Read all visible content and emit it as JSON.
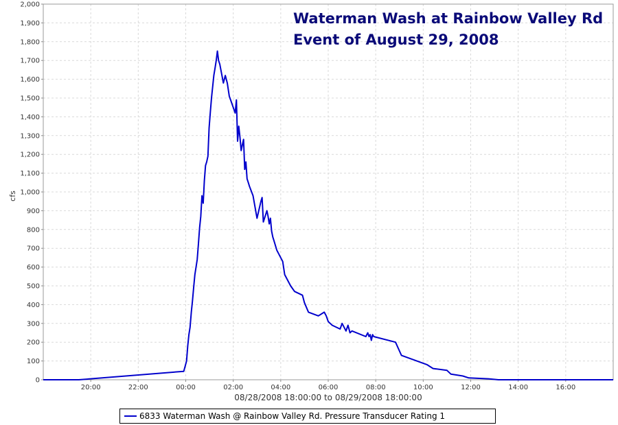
{
  "chart_data": {
    "type": "line",
    "title_lines": [
      "Waterman Wash at Rainbow Valley Rd",
      "Event of August 29, 2008"
    ],
    "xlabel": "08/28/2008 18:00:00 to 08/29/2008 18:00:00",
    "ylabel": "cfs",
    "ylim": [
      0,
      2000
    ],
    "xlim": [
      "08/28/2008 18:00",
      "08/29/2008 18:00"
    ],
    "y_ticks": [
      "0",
      "100",
      "200",
      "300",
      "400",
      "500",
      "600",
      "700",
      "800",
      "900",
      "1,000",
      "1,100",
      "1,200",
      "1,300",
      "1,400",
      "1,500",
      "1,600",
      "1,700",
      "1,800",
      "1,900",
      "2,000"
    ],
    "x_ticks": [
      "20:00",
      "22:00",
      "00:00",
      "02:00",
      "04:00",
      "06:00",
      "08:00",
      "10:00",
      "12:00",
      "14:00",
      "16:00"
    ],
    "grid": true,
    "legend_position": "bottom",
    "series": [
      {
        "name": "6833 Waterman Wash @ Rainbow Valley Rd. Pressure Transducer Rating 1",
        "color": "#0000cc",
        "x": [
          "08/28/2008 18:00",
          "08/28/2008 19:30",
          "08/28/2008 23:55",
          "08/29/2008 00:02",
          "08/29/2008 00:05",
          "08/29/2008 00:08",
          "08/29/2008 00:11",
          "08/29/2008 00:14",
          "08/29/2008 00:17",
          "08/29/2008 00:20",
          "08/29/2008 00:23",
          "08/29/2008 00:26",
          "08/29/2008 00:29",
          "08/29/2008 00:32",
          "08/29/2008 00:35",
          "08/29/2008 00:38",
          "08/29/2008 00:41",
          "08/29/2008 00:44",
          "08/29/2008 00:47",
          "08/29/2008 00:50",
          "08/29/2008 00:53",
          "08/29/2008 00:56",
          "08/29/2008 00:59",
          "08/29/2008 01:02",
          "08/29/2008 01:05",
          "08/29/2008 01:08",
          "08/29/2008 01:11",
          "08/29/2008 01:14",
          "08/29/2008 01:17",
          "08/29/2008 01:20",
          "08/29/2008 01:23",
          "08/29/2008 01:26",
          "08/29/2008 01:35",
          "08/29/2008 01:40",
          "08/29/2008 01:45",
          "08/29/2008 01:50",
          "08/29/2008 01:55",
          "08/29/2008 02:05",
          "08/29/2008 02:08",
          "08/29/2008 02:11",
          "08/29/2008 02:14",
          "08/29/2008 02:17",
          "08/29/2008 02:20",
          "08/29/2008 02:23",
          "08/29/2008 02:26",
          "08/29/2008 02:29",
          "08/29/2008 02:32",
          "08/29/2008 02:35",
          "08/29/2008 02:38",
          "08/29/2008 02:41",
          "08/29/2008 02:50",
          "08/29/2008 03:00",
          "08/29/2008 03:10",
          "08/29/2008 03:13",
          "08/29/2008 03:16",
          "08/29/2008 03:25",
          "08/29/2008 03:28",
          "08/29/2008 03:31",
          "08/29/2008 03:34",
          "08/29/2008 03:37",
          "08/29/2008 03:40",
          "08/29/2008 03:43",
          "08/29/2008 03:50",
          "08/29/2008 04:05",
          "08/29/2008 04:10",
          "08/29/2008 04:25",
          "08/29/2008 04:35",
          "08/29/2008 04:55",
          "08/29/2008 05:00",
          "08/29/2008 05:10",
          "08/29/2008 05:35",
          "08/29/2008 05:50",
          "08/29/2008 05:55",
          "08/29/2008 06:00",
          "08/29/2008 06:05",
          "08/29/2008 06:10",
          "08/29/2008 06:30",
          "08/29/2008 06:35",
          "08/29/2008 06:45",
          "08/29/2008 06:50",
          "08/29/2008 06:55",
          "08/29/2008 07:00",
          "08/29/2008 07:35",
          "08/29/2008 07:40",
          "08/29/2008 07:43",
          "08/29/2008 07:46",
          "08/29/2008 07:49",
          "08/29/2008 07:52",
          "08/29/2008 07:55",
          "08/29/2008 08:50",
          "08/29/2008 09:05",
          "08/29/2008 10:10",
          "08/29/2008 10:25",
          "08/29/2008 11:00",
          "08/29/2008 11:10",
          "08/29/2008 11:40",
          "08/29/2008 11:55",
          "08/29/2008 12:45",
          "08/29/2008 13:10",
          "08/29/2008 18:00"
        ],
        "y": [
          0,
          0,
          45,
          100,
          180,
          240,
          280,
          360,
          420,
          490,
          560,
          600,
          640,
          720,
          810,
          870,
          980,
          940,
          1060,
          1140,
          1160,
          1190,
          1340,
          1420,
          1500,
          1560,
          1620,
          1660,
          1700,
          1750,
          1700,
          1680,
          1580,
          1620,
          1580,
          1510,
          1480,
          1420,
          1490,
          1270,
          1350,
          1290,
          1220,
          1250,
          1280,
          1120,
          1160,
          1070,
          1050,
          1030,
          980,
          860,
          950,
          970,
          840,
          900,
          870,
          830,
          860,
          790,
          760,
          740,
          690,
          630,
          560,
          500,
          470,
          450,
          410,
          360,
          340,
          360,
          340,
          310,
          300,
          290,
          270,
          300,
          260,
          290,
          250,
          260,
          230,
          250,
          230,
          240,
          210,
          240,
          230,
          200,
          130,
          80,
          60,
          50,
          30,
          20,
          10,
          5,
          0,
          0
        ]
      }
    ]
  }
}
